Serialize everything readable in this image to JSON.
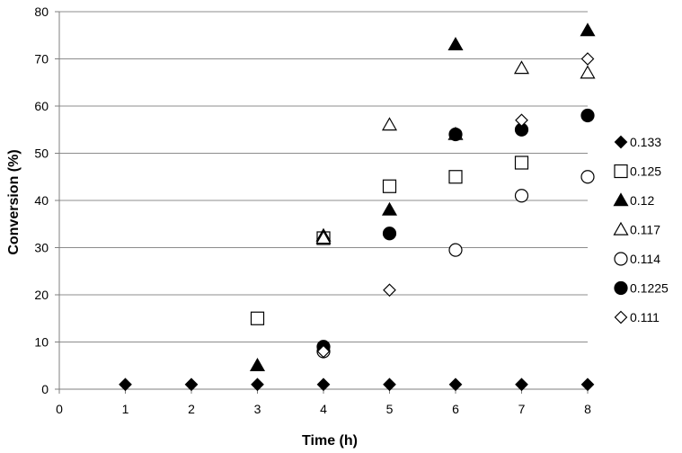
{
  "chart_data": {
    "type": "scatter",
    "xlabel": "Time (h)",
    "ylabel": "Conversion (%)",
    "xlim": [
      0,
      8
    ],
    "ylim": [
      0,
      80
    ],
    "xticks": [
      0,
      1,
      2,
      3,
      4,
      5,
      6,
      7,
      8
    ],
    "yticks": [
      0,
      10,
      20,
      30,
      40,
      50,
      60,
      70,
      80
    ],
    "grid": "horizontal",
    "legend_position": "right",
    "series": [
      {
        "name": "0.133",
        "marker": "diamond",
        "fill": "filled",
        "points": [
          [
            1,
            1
          ],
          [
            2,
            1
          ],
          [
            3,
            1
          ],
          [
            4,
            1
          ],
          [
            5,
            1
          ],
          [
            6,
            1
          ],
          [
            7,
            1
          ],
          [
            8,
            1
          ]
        ]
      },
      {
        "name": "0.125",
        "marker": "square",
        "fill": "open",
        "points": [
          [
            3,
            15
          ],
          [
            4,
            32
          ],
          [
            5,
            43
          ],
          [
            6,
            45
          ],
          [
            7,
            48
          ]
        ]
      },
      {
        "name": "0.12",
        "marker": "triangle",
        "fill": "filled",
        "points": [
          [
            3,
            5
          ],
          [
            4,
            32.5
          ],
          [
            5,
            38
          ],
          [
            6,
            73
          ],
          [
            8,
            76
          ]
        ]
      },
      {
        "name": "0.117",
        "marker": "triangle",
        "fill": "open",
        "points": [
          [
            4,
            32
          ],
          [
            5,
            56
          ],
          [
            6,
            54
          ],
          [
            7,
            68
          ],
          [
            8,
            67
          ]
        ]
      },
      {
        "name": "0.114",
        "marker": "circle",
        "fill": "open",
        "points": [
          [
            4,
            8
          ],
          [
            6,
            29.5
          ],
          [
            7,
            41
          ],
          [
            8,
            45
          ]
        ]
      },
      {
        "name": "0.1225",
        "marker": "circle",
        "fill": "filled",
        "points": [
          [
            4,
            9
          ],
          [
            5,
            33
          ],
          [
            6,
            54
          ],
          [
            7,
            55
          ],
          [
            8,
            58
          ]
        ]
      },
      {
        "name": "0.111",
        "marker": "diamond",
        "fill": "open",
        "points": [
          [
            4,
            8
          ],
          [
            5,
            21
          ],
          [
            7,
            57
          ],
          [
            8,
            70
          ]
        ]
      }
    ]
  }
}
